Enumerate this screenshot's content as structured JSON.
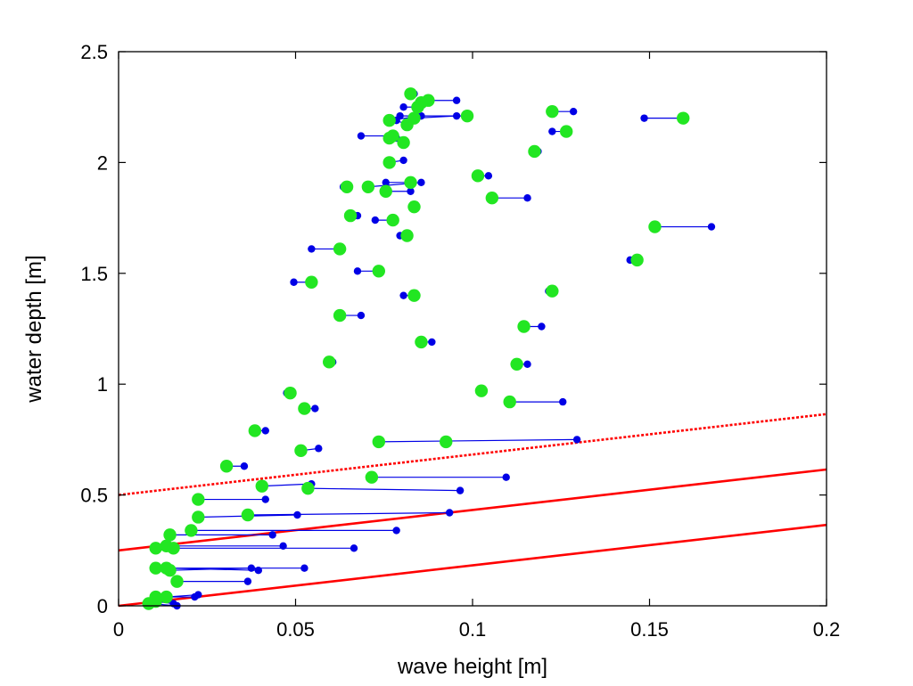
{
  "chart_data": {
    "type": "scatter",
    "title": "",
    "xlabel": "wave height [m]",
    "ylabel": "water depth [m]",
    "xlim": [
      0,
      0.2
    ],
    "ylim": [
      0,
      2.5
    ],
    "xticks": [
      0,
      0.05,
      0.1,
      0.15,
      0.2
    ],
    "xtick_labels": [
      "0",
      "0.05",
      "0.1",
      "0.15",
      "0.2"
    ],
    "yticks": [
      0,
      0.5,
      1,
      1.5,
      2,
      2.5
    ],
    "ytick_labels": [
      "0",
      "0.5",
      "1",
      "1.5",
      "2",
      "2.5"
    ],
    "grid": false,
    "legend": "none",
    "colors": {
      "measured": "#0000e6",
      "predicted": "#22e622",
      "lines": "#ff0000"
    },
    "series": [
      {
        "marker": "small-dot",
        "color": "#0000e6",
        "x": [
          0.0835,
          0.0955,
          0.0875,
          0.0805,
          0.0795,
          0.1285,
          0.1485,
          0.0855,
          0.0955,
          0.0785,
          0.1225,
          0.0685,
          0.1185,
          0.0785,
          0.0805,
          0.0805,
          0.1045,
          0.0755,
          0.0855,
          0.0635,
          0.0825,
          0.1155,
          0.0835,
          0.0675,
          0.0725,
          0.1675,
          0.0795,
          0.0675,
          0.0545,
          0.1445,
          0.0495,
          0.0805,
          0.1215,
          0.0685,
          0.1195,
          0.0885,
          0.0605,
          0.1155,
          0.1025,
          0.0475,
          0.0555,
          0.1255,
          0.0415,
          0.1295,
          0.0925,
          0.0565,
          0.0355,
          0.1095,
          0.0545,
          0.0965,
          0.0415,
          0.0505,
          0.0935,
          0.0785,
          0.0435,
          0.0465,
          0.0665,
          0.0155,
          0.0525,
          0.0395,
          0.0375,
          0.0365,
          0.0225,
          0.0215,
          0.0155,
          0.0165
        ],
        "y": [
          2.31,
          2.28,
          2.27,
          2.25,
          2.21,
          2.23,
          2.2,
          2.21,
          2.21,
          2.19,
          2.14,
          2.12,
          2.05,
          2.11,
          2.09,
          2.01,
          1.94,
          1.91,
          1.91,
          1.89,
          1.87,
          1.84,
          1.8,
          1.76,
          1.74,
          1.71,
          1.67,
          1.51,
          1.61,
          1.56,
          1.46,
          1.4,
          1.42,
          1.31,
          1.26,
          1.19,
          1.1,
          1.09,
          0.97,
          0.96,
          0.89,
          0.92,
          0.79,
          0.75,
          0.74,
          0.71,
          0.63,
          0.58,
          0.55,
          0.52,
          0.48,
          0.41,
          0.42,
          0.34,
          0.32,
          0.27,
          0.26,
          0.26,
          0.17,
          0.16,
          0.17,
          0.11,
          0.05,
          0.04,
          0.01,
          0.0
        ]
      },
      {
        "marker": "large-dot",
        "color": "#22e622",
        "x": [
          0.0825,
          0.0875,
          0.0855,
          0.0845,
          0.0985,
          0.1225,
          0.1595,
          0.0765,
          0.0835,
          0.0815,
          0.1265,
          0.0775,
          0.1175,
          0.0765,
          0.0805,
          0.0765,
          0.1015,
          0.0825,
          0.0705,
          0.0645,
          0.0755,
          0.1055,
          0.0835,
          0.0655,
          0.0775,
          0.1515,
          0.0815,
          0.0735,
          0.0625,
          0.1465,
          0.0545,
          0.0835,
          0.1225,
          0.0625,
          0.1145,
          0.0855,
          0.0595,
          0.1125,
          0.1025,
          0.0485,
          0.0525,
          0.1105,
          0.0385,
          0.0735,
          0.0925,
          0.0515,
          0.0305,
          0.0715,
          0.0405,
          0.0535,
          0.0225,
          0.0225,
          0.0365,
          0.0205,
          0.0145,
          0.0135,
          0.0105,
          0.0155,
          0.0105,
          0.0135,
          0.0145,
          0.0165,
          0.0135,
          0.0105,
          0.0105,
          0.0085
        ],
        "y": [
          2.31,
          2.28,
          2.27,
          2.25,
          2.21,
          2.23,
          2.2,
          2.19,
          2.2,
          2.17,
          2.14,
          2.12,
          2.05,
          2.11,
          2.09,
          2.0,
          1.94,
          1.91,
          1.89,
          1.89,
          1.87,
          1.84,
          1.8,
          1.76,
          1.74,
          1.71,
          1.67,
          1.51,
          1.61,
          1.56,
          1.46,
          1.4,
          1.42,
          1.31,
          1.26,
          1.19,
          1.1,
          1.09,
          0.97,
          0.96,
          0.89,
          0.92,
          0.79,
          0.74,
          0.74,
          0.7,
          0.63,
          0.58,
          0.54,
          0.53,
          0.48,
          0.4,
          0.41,
          0.34,
          0.32,
          0.27,
          0.26,
          0.26,
          0.17,
          0.17,
          0.16,
          0.11,
          0.04,
          0.04,
          0.02,
          0.01
        ]
      }
    ],
    "reference_lines": [
      {
        "style": "dotted",
        "color": "#ff0000",
        "x": [
          0,
          0.2
        ],
        "y": [
          0.5,
          0.865
        ]
      },
      {
        "style": "solid",
        "color": "#ff0000",
        "x": [
          0,
          0.2
        ],
        "y": [
          0.25,
          0.615
        ]
      },
      {
        "style": "solid",
        "color": "#ff0000",
        "x": [
          0,
          0.2
        ],
        "y": [
          0.0,
          0.365
        ]
      }
    ]
  }
}
